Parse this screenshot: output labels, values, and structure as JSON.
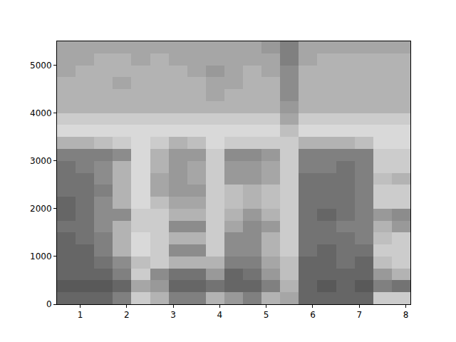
{
  "chart_data": {
    "type": "heatmap",
    "x": [
      0.7,
      1.1,
      1.5,
      1.9,
      2.3,
      2.7,
      3.1,
      3.5,
      3.9,
      4.3,
      4.7,
      5.1,
      5.5,
      5.9,
      6.3,
      6.7,
      7.1,
      7.5,
      7.9
    ],
    "y": [
      125,
      375,
      625,
      875,
      1125,
      1375,
      1625,
      1875,
      2125,
      2375,
      2625,
      2875,
      3125,
      3375,
      3625,
      3875,
      4125,
      4375,
      4625,
      4875,
      5125,
      5375
    ],
    "cells": [
      [
        0.6,
        0.6,
        0.6,
        0.5,
        0.2,
        0.3,
        0.5,
        0.5,
        0.3,
        0.4,
        0.5,
        0.3,
        0.35,
        0.6,
        0.6,
        0.6,
        0.6,
        0.2,
        0.2
      ],
      [
        0.65,
        0.65,
        0.65,
        0.6,
        0.35,
        0.4,
        0.6,
        0.6,
        0.55,
        0.6,
        0.6,
        0.5,
        0.3,
        0.6,
        0.65,
        0.6,
        0.65,
        0.5,
        0.55
      ],
      [
        0.6,
        0.6,
        0.6,
        0.5,
        0.2,
        0.45,
        0.55,
        0.55,
        0.4,
        0.6,
        0.55,
        0.4,
        0.25,
        0.6,
        0.6,
        0.6,
        0.6,
        0.4,
        0.3
      ],
      [
        0.6,
        0.6,
        0.55,
        0.45,
        0.25,
        0.2,
        0.3,
        0.3,
        0.3,
        0.5,
        0.5,
        0.35,
        0.25,
        0.6,
        0.6,
        0.55,
        0.6,
        0.25,
        0.2
      ],
      [
        0.6,
        0.6,
        0.5,
        0.3,
        0.15,
        0.2,
        0.45,
        0.45,
        0.2,
        0.45,
        0.45,
        0.3,
        0.2,
        0.55,
        0.6,
        0.55,
        0.55,
        0.2,
        0.2
      ],
      [
        0.6,
        0.55,
        0.5,
        0.3,
        0.15,
        0.2,
        0.3,
        0.3,
        0.2,
        0.45,
        0.45,
        0.3,
        0.2,
        0.55,
        0.55,
        0.55,
        0.5,
        0.25,
        0.2
      ],
      [
        0.55,
        0.55,
        0.45,
        0.3,
        0.2,
        0.2,
        0.45,
        0.45,
        0.2,
        0.35,
        0.45,
        0.4,
        0.2,
        0.55,
        0.55,
        0.5,
        0.5,
        0.3,
        0.4
      ],
      [
        0.6,
        0.55,
        0.45,
        0.45,
        0.2,
        0.2,
        0.3,
        0.3,
        0.2,
        0.3,
        0.4,
        0.3,
        0.2,
        0.55,
        0.6,
        0.55,
        0.5,
        0.4,
        0.45
      ],
      [
        0.6,
        0.55,
        0.45,
        0.3,
        0.15,
        0.25,
        0.35,
        0.35,
        0.2,
        0.25,
        0.3,
        0.25,
        0.2,
        0.55,
        0.55,
        0.55,
        0.5,
        0.2,
        0.2
      ],
      [
        0.55,
        0.55,
        0.5,
        0.3,
        0.15,
        0.35,
        0.4,
        0.4,
        0.2,
        0.25,
        0.3,
        0.25,
        0.2,
        0.55,
        0.55,
        0.55,
        0.5,
        0.2,
        0.2
      ],
      [
        0.55,
        0.55,
        0.45,
        0.3,
        0.15,
        0.35,
        0.4,
        0.35,
        0.2,
        0.4,
        0.4,
        0.35,
        0.2,
        0.55,
        0.55,
        0.55,
        0.5,
        0.25,
        0.3
      ],
      [
        0.55,
        0.5,
        0.45,
        0.3,
        0.15,
        0.3,
        0.4,
        0.35,
        0.2,
        0.4,
        0.4,
        0.35,
        0.2,
        0.5,
        0.5,
        0.55,
        0.5,
        0.2,
        0.2
      ],
      [
        0.5,
        0.5,
        0.5,
        0.45,
        0.15,
        0.3,
        0.4,
        0.4,
        0.2,
        0.45,
        0.45,
        0.4,
        0.2,
        0.5,
        0.5,
        0.5,
        0.5,
        0.2,
        0.2
      ],
      [
        0.3,
        0.3,
        0.25,
        0.2,
        0.15,
        0.2,
        0.3,
        0.25,
        0.15,
        0.2,
        0.2,
        0.2,
        0.2,
        0.3,
        0.3,
        0.3,
        0.25,
        0.15,
        0.15
      ],
      [
        0.15,
        0.15,
        0.15,
        0.15,
        0.15,
        0.15,
        0.15,
        0.15,
        0.15,
        0.15,
        0.15,
        0.15,
        0.25,
        0.15,
        0.15,
        0.15,
        0.15,
        0.15,
        0.15
      ],
      [
        0.2,
        0.2,
        0.2,
        0.2,
        0.2,
        0.2,
        0.2,
        0.2,
        0.2,
        0.2,
        0.2,
        0.2,
        0.35,
        0.2,
        0.2,
        0.2,
        0.2,
        0.2,
        0.2
      ],
      [
        0.3,
        0.3,
        0.3,
        0.3,
        0.3,
        0.3,
        0.3,
        0.3,
        0.3,
        0.3,
        0.3,
        0.3,
        0.4,
        0.3,
        0.3,
        0.3,
        0.3,
        0.3,
        0.3
      ],
      [
        0.3,
        0.3,
        0.3,
        0.3,
        0.3,
        0.3,
        0.3,
        0.3,
        0.35,
        0.3,
        0.3,
        0.3,
        0.45,
        0.3,
        0.3,
        0.3,
        0.3,
        0.3,
        0.3
      ],
      [
        0.3,
        0.3,
        0.3,
        0.35,
        0.3,
        0.3,
        0.3,
        0.3,
        0.35,
        0.35,
        0.3,
        0.3,
        0.45,
        0.3,
        0.3,
        0.3,
        0.3,
        0.3,
        0.3
      ],
      [
        0.35,
        0.3,
        0.3,
        0.3,
        0.3,
        0.3,
        0.3,
        0.35,
        0.4,
        0.35,
        0.3,
        0.35,
        0.45,
        0.3,
        0.3,
        0.3,
        0.3,
        0.3,
        0.3
      ],
      [
        0.35,
        0.35,
        0.3,
        0.3,
        0.35,
        0.3,
        0.35,
        0.35,
        0.35,
        0.35,
        0.35,
        0.35,
        0.5,
        0.35,
        0.3,
        0.3,
        0.3,
        0.3,
        0.3
      ],
      [
        0.35,
        0.35,
        0.35,
        0.35,
        0.35,
        0.35,
        0.35,
        0.35,
        0.35,
        0.35,
        0.35,
        0.4,
        0.5,
        0.35,
        0.35,
        0.35,
        0.35,
        0.35,
        0.35
      ]
    ],
    "color_range": [
      0,
      1
    ],
    "xlim": [
      0.5,
      8.1
    ],
    "xticks": [
      1,
      2,
      3,
      4,
      5,
      6,
      7,
      8
    ],
    "ylim": [
      0,
      5500
    ],
    "yticks": [
      0,
      1000,
      2000,
      3000,
      4000,
      5000
    ],
    "grid": false
  }
}
